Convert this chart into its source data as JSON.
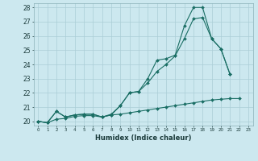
{
  "xlabel": "Humidex (Indice chaleur)",
  "x_values": [
    0,
    1,
    2,
    3,
    4,
    5,
    6,
    7,
    8,
    9,
    10,
    11,
    12,
    13,
    14,
    15,
    16,
    17,
    18,
    19,
    20,
    21,
    22,
    23
  ],
  "line1": [
    20.0,
    19.9,
    20.7,
    20.3,
    20.45,
    20.5,
    20.5,
    20.3,
    20.45,
    21.1,
    22.0,
    22.1,
    23.0,
    24.3,
    24.4,
    24.65,
    26.7,
    28.0,
    28.0,
    25.8,
    25.1,
    23.3,
    null,
    null
  ],
  "line2": [
    20.0,
    19.9,
    20.7,
    20.3,
    20.45,
    20.5,
    20.5,
    20.3,
    20.5,
    21.1,
    22.0,
    22.1,
    22.7,
    23.5,
    24.0,
    24.6,
    25.8,
    27.2,
    27.3,
    25.8,
    25.1,
    23.3,
    null,
    null
  ],
  "line3": [
    20.0,
    19.9,
    20.15,
    20.2,
    20.35,
    20.4,
    20.4,
    20.3,
    20.45,
    20.5,
    20.6,
    20.7,
    20.8,
    20.9,
    21.0,
    21.1,
    21.2,
    21.3,
    21.4,
    21.5,
    21.55,
    21.6,
    21.6,
    null
  ],
  "bg_color": "#cce8ef",
  "grid_color": "#aacdd6",
  "line_color": "#1a6e64",
  "ylim": [
    19.7,
    28.3
  ],
  "xlim": [
    -0.5,
    23.5
  ],
  "yticks": [
    20,
    21,
    22,
    23,
    24,
    25,
    26,
    27,
    28
  ],
  "xticks": [
    0,
    1,
    2,
    3,
    4,
    5,
    6,
    7,
    8,
    9,
    10,
    11,
    12,
    13,
    14,
    15,
    16,
    17,
    18,
    19,
    20,
    21,
    22,
    23
  ],
  "ylabel_fontsize": 5.5,
  "xlabel_fontsize": 6.0
}
